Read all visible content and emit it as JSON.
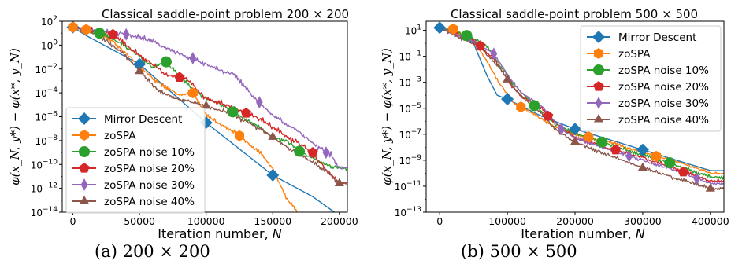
{
  "captions": [
    "(a) 200 × 200",
    "(b) 500 × 500"
  ],
  "chart_data": [
    {
      "type": "line",
      "title": "Classical saddle-point problem 200 × 200",
      "xlabel": "Iteration number, N",
      "ylabel": "φ(x_N, y*) − φ(x*, y_N)",
      "yscale": "log",
      "xlim": [
        -8000,
        206000
      ],
      "ylim_exp": [
        -14,
        2
      ],
      "xticks": [
        0,
        50000,
        100000,
        150000,
        200000
      ],
      "xtick_labels": [
        "0",
        "50000",
        "100000",
        "150000",
        "200000"
      ],
      "yticks_exp": [
        -14,
        -12,
        -10,
        -8,
        -6,
        -4,
        -2,
        0,
        2
      ],
      "ytick_labels": [
        "10−14",
        "10−12",
        "10−10",
        "10−8",
        "10−6",
        "10−4",
        "10−2",
        "100",
        "102"
      ],
      "legend_position": "lower-left",
      "series": [
        {
          "name": "Mirror Descent",
          "color": "#1f77b4",
          "marker": "diamond",
          "jitter": 0,
          "points": [
            [
              0,
              1.5
            ],
            [
              10000,
              0.8
            ],
            [
              50000,
              -1.6
            ],
            [
              100000,
              -6.5
            ],
            [
              150000,
              -10.9
            ],
            [
              180000,
              -12.7
            ],
            [
              200000,
              -14.3
            ]
          ],
          "markers": [
            [
              0,
              1.5
            ],
            [
              50000,
              -1.6
            ],
            [
              100000,
              -6.5
            ],
            [
              150000,
              -10.9
            ]
          ]
        },
        {
          "name": "zoSPA",
          "color": "#ff7f0e",
          "marker": "hexagon",
          "jitter": 0.14,
          "points": [
            [
              0,
              1.5
            ],
            [
              15000,
              1.2
            ],
            [
              30000,
              0.3
            ],
            [
              45000,
              -1.2
            ],
            [
              60000,
              -2.8
            ],
            [
              80000,
              -4.2
            ],
            [
              90000,
              -4.0
            ],
            [
              100000,
              -5.9
            ],
            [
              110000,
              -6.6
            ],
            [
              125000,
              -7.6
            ],
            [
              140000,
              -9.0
            ],
            [
              150000,
              -10.3
            ],
            [
              160000,
              -12.8
            ],
            [
              170000,
              -14.2
            ],
            [
              200000,
              -14.8
            ]
          ],
          "markers": [
            [
              0,
              1.5
            ],
            [
              10000,
              1.3
            ],
            [
              90000,
              -4.0
            ],
            [
              125000,
              -7.6
            ]
          ]
        },
        {
          "name": "zoSPA noise 10%",
          "color": "#2ca02c",
          "marker": "circle",
          "jitter": 0.16,
          "points": [
            [
              0,
              1.5
            ],
            [
              20000,
              1.0
            ],
            [
              35000,
              0.2
            ],
            [
              50000,
              -0.9
            ],
            [
              60000,
              -1.9
            ],
            [
              70000,
              -1.4
            ],
            [
              85000,
              -3.2
            ],
            [
              100000,
              -4.5
            ],
            [
              110000,
              -4.9
            ],
            [
              125000,
              -5.9
            ],
            [
              140000,
              -6.9
            ],
            [
              150000,
              -7.8
            ],
            [
              160000,
              -8.0
            ],
            [
              175000,
              -9.2
            ],
            [
              190000,
              -10.0
            ],
            [
              200000,
              -10.3
            ]
          ],
          "markers": [
            [
              20000,
              1.0
            ],
            [
              70000,
              -1.4
            ],
            [
              120000,
              -5.6
            ],
            [
              170000,
              -8.9
            ]
          ]
        },
        {
          "name": "zoSPA noise 20%",
          "color": "#d62728",
          "marker": "pentagon",
          "jitter": 0.2,
          "points": [
            [
              0,
              1.5
            ],
            [
              30000,
              0.9
            ],
            [
              45000,
              -0.5
            ],
            [
              55000,
              -1.2
            ],
            [
              70000,
              -2.5
            ],
            [
              85000,
              -2.8
            ],
            [
              100000,
              -4.5
            ],
            [
              120000,
              -5.2
            ],
            [
              140000,
              -6.2
            ],
            [
              160000,
              -7.6
            ],
            [
              175000,
              -8.6
            ],
            [
              190000,
              -10.4
            ],
            [
              200000,
              -11.6
            ]
          ],
          "markers": [
            [
              30000,
              0.9
            ],
            [
              80000,
              -2.7
            ],
            [
              130000,
              -5.7
            ],
            [
              180000,
              -9.0
            ]
          ]
        },
        {
          "name": "zoSPA noise 30%",
          "color": "#9467bd",
          "marker": "thin_diamond",
          "jitter": 0.18,
          "points": [
            [
              0,
              1.5
            ],
            [
              40000,
              0.9
            ],
            [
              60000,
              0.3
            ],
            [
              80000,
              -0.7
            ],
            [
              100000,
              -1.6
            ],
            [
              115000,
              -2.3
            ],
            [
              120000,
              -2.4
            ],
            [
              135000,
              -4.3
            ],
            [
              150000,
              -5.9
            ],
            [
              165000,
              -6.9
            ],
            [
              180000,
              -8.2
            ],
            [
              195000,
              -9.4
            ],
            [
              200000,
              -10.3
            ]
          ],
          "markers": [
            [
              40000,
              0.9
            ],
            [
              90000,
              -1.1
            ],
            [
              140000,
              -4.8
            ],
            [
              190000,
              -9.0
            ]
          ]
        },
        {
          "name": "zoSPA noise 40%",
          "color": "#8c564b",
          "marker": "triangle",
          "jitter": 0.16,
          "points": [
            [
              0,
              1.5
            ],
            [
              20000,
              0.8
            ],
            [
              40000,
              -0.9
            ],
            [
              55000,
              -2.8
            ],
            [
              65000,
              -3.9
            ],
            [
              75000,
              -4.4
            ],
            [
              90000,
              -4.8
            ],
            [
              100000,
              -5.1
            ],
            [
              120000,
              -5.8
            ],
            [
              140000,
              -7.0
            ],
            [
              160000,
              -8.5
            ],
            [
              175000,
              -9.5
            ],
            [
              190000,
              -10.5
            ],
            [
              200000,
              -11.6
            ]
          ],
          "markers": [
            [
              50000,
              -2.2
            ],
            [
              100000,
              -5.1
            ],
            [
              150000,
              -7.7
            ],
            [
              200000,
              -11.6
            ]
          ]
        }
      ]
    },
    {
      "type": "line",
      "title": "Classical saddle-point problem 500 × 500",
      "xlabel": "Iteration number, N",
      "ylabel": "φ(x_N, y*) − φ(x*, y_N)",
      "yscale": "log",
      "xlim": [
        -20000,
        420000
      ],
      "ylim_exp": [
        -13,
        1.7
      ],
      "xticks": [
        0,
        100000,
        200000,
        300000,
        400000
      ],
      "xtick_labels": [
        "0",
        "100000",
        "200000",
        "300000",
        "400000"
      ],
      "yticks_exp": [
        -13,
        -11,
        -9,
        -7,
        -5,
        -3,
        -1,
        1
      ],
      "ytick_labels": [
        "10−13",
        "10−11",
        "10−9",
        "10−7",
        "10−5",
        "10−3",
        "10−1",
        "101"
      ],
      "legend_position": "upper-right",
      "series": [
        {
          "name": "Mirror Descent",
          "color": "#1f77b4",
          "marker": "diamond",
          "jitter": 0,
          "points": [
            [
              0,
              1.2
            ],
            [
              20000,
              1.0
            ],
            [
              50000,
              0.0
            ],
            [
              70000,
              -2.5
            ],
            [
              85000,
              -4.0
            ],
            [
              100000,
              -4.3
            ],
            [
              150000,
              -5.6
            ],
            [
              200000,
              -6.6
            ],
            [
              250000,
              -7.4
            ],
            [
              300000,
              -8.2
            ],
            [
              350000,
              -9.0
            ],
            [
              400000,
              -9.8
            ]
          ],
          "markers": [
            [
              0,
              1.2
            ],
            [
              100000,
              -4.3
            ],
            [
              200000,
              -6.6
            ],
            [
              300000,
              -8.2
            ]
          ]
        },
        {
          "name": "zoSPA",
          "color": "#ff7f0e",
          "marker": "hexagon",
          "jitter": 0.1,
          "points": [
            [
              0,
              1.2
            ],
            [
              20000,
              1.1
            ],
            [
              50000,
              0.2
            ],
            [
              70000,
              -1.4
            ],
            [
              90000,
              -3.2
            ],
            [
              110000,
              -4.6
            ],
            [
              150000,
              -5.8
            ],
            [
              170000,
              -6.4
            ],
            [
              200000,
              -7.0
            ],
            [
              250000,
              -7.6
            ],
            [
              300000,
              -8.4
            ],
            [
              350000,
              -9.1
            ],
            [
              400000,
              -10.0
            ]
          ],
          "markers": [
            [
              20000,
              1.1
            ],
            [
              120000,
              -4.9
            ],
            [
              220000,
              -7.2
            ],
            [
              320000,
              -8.7
            ]
          ]
        },
        {
          "name": "zoSPA noise 10%",
          "color": "#2ca02c",
          "marker": "circle",
          "jitter": 0.13,
          "points": [
            [
              0,
              1.2
            ],
            [
              40000,
              0.6
            ],
            [
              70000,
              -0.2
            ],
            [
              90000,
              -1.8
            ],
            [
              110000,
              -3.2
            ],
            [
              130000,
              -4.3
            ],
            [
              150000,
              -5.2
            ],
            [
              170000,
              -6.2
            ],
            [
              200000,
              -6.9
            ],
            [
              250000,
              -7.8
            ],
            [
              300000,
              -8.6
            ],
            [
              350000,
              -9.4
            ],
            [
              400000,
              -10.3
            ]
          ],
          "markers": [
            [
              40000,
              0.6
            ],
            [
              140000,
              -4.8
            ],
            [
              240000,
              -7.6
            ],
            [
              340000,
              -9.2
            ]
          ]
        },
        {
          "name": "zoSPA noise 20%",
          "color": "#d62728",
          "marker": "pentagon",
          "jitter": 0.13,
          "points": [
            [
              0,
              1.2
            ],
            [
              50000,
              0.2
            ],
            [
              80000,
              -1.2
            ],
            [
              100000,
              -2.8
            ],
            [
              120000,
              -4.1
            ],
            [
              150000,
              -5.0
            ],
            [
              180000,
              -6.5
            ],
            [
              200000,
              -7.2
            ],
            [
              250000,
              -8.1
            ],
            [
              300000,
              -8.8
            ],
            [
              350000,
              -9.7
            ],
            [
              400000,
              -10.6
            ]
          ],
          "markers": [
            [
              60000,
              -0.2
            ],
            [
              160000,
              -5.6
            ],
            [
              260000,
              -8.2
            ],
            [
              360000,
              -9.9
            ]
          ]
        },
        {
          "name": "zoSPA noise 30%",
          "color": "#9467bd",
          "marker": "thin_diamond",
          "jitter": 0.13,
          "points": [
            [
              0,
              1.2
            ],
            [
              50000,
              0.1
            ],
            [
              80000,
              -0.8
            ],
            [
              100000,
              -2.4
            ],
            [
              120000,
              -3.8
            ],
            [
              150000,
              -4.8
            ],
            [
              180000,
              -6.6
            ],
            [
              200000,
              -7.3
            ],
            [
              250000,
              -8.2
            ],
            [
              300000,
              -9.0
            ],
            [
              350000,
              -9.8
            ],
            [
              400000,
              -10.8
            ]
          ],
          "markers": [
            [
              80000,
              -0.8
            ],
            [
              180000,
              -6.6
            ],
            [
              280000,
              -8.7
            ],
            [
              380000,
              -10.4
            ]
          ]
        },
        {
          "name": "zoSPA noise 40%",
          "color": "#8c564b",
          "marker": "triangle",
          "jitter": 0.13,
          "points": [
            [
              0,
              1.2
            ],
            [
              60000,
              -0.3
            ],
            [
              90000,
              -2.0
            ],
            [
              110000,
              -3.5
            ],
            [
              130000,
              -4.5
            ],
            [
              150000,
              -5.4
            ],
            [
              170000,
              -6.6
            ],
            [
              200000,
              -7.6
            ],
            [
              250000,
              -8.6
            ],
            [
              300000,
              -9.6
            ],
            [
              350000,
              -10.4
            ],
            [
              400000,
              -11.2
            ]
          ],
          "markers": [
            [
              100000,
              -2.8
            ],
            [
              200000,
              -7.6
            ],
            [
              300000,
              -9.6
            ],
            [
              400000,
              -11.2
            ]
          ]
        }
      ]
    }
  ]
}
